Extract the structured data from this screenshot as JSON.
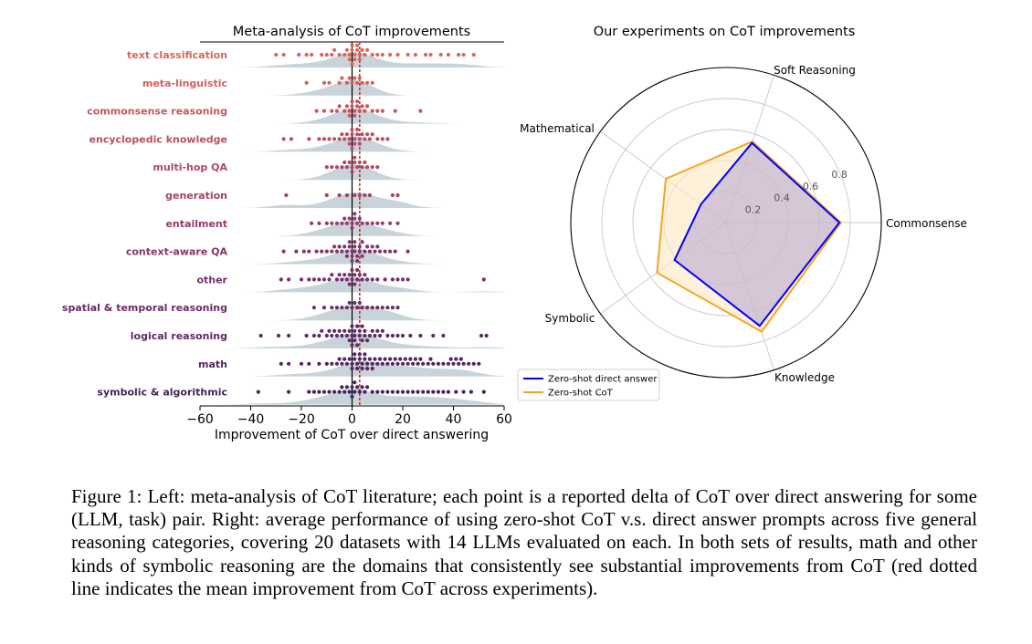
{
  "chart_data": [
    {
      "type": "scatter",
      "title": "Meta-analysis of CoT improvements",
      "xlabel": "Improvement of CoT over direct answering",
      "xlim": [
        -60,
        60
      ],
      "xticks": [
        "−60",
        "−40",
        "−20",
        "0",
        "20",
        "40",
        "60"
      ],
      "xtick_values": [
        -60,
        -40,
        -20,
        0,
        20,
        40,
        60
      ],
      "mean_line": 3,
      "mean_line_color": "#d62728",
      "zero_line_color": "#000000",
      "density_color": "#b5c5cc",
      "categories": [
        {
          "name": "text classification",
          "color": "#d9675a",
          "values": [
            -30,
            -27,
            -21,
            -18,
            -16,
            -12,
            -10,
            -8,
            -7,
            -5,
            -3,
            -2,
            -1,
            -1,
            0,
            0,
            0,
            1,
            1,
            2,
            2,
            3,
            3,
            4,
            5,
            6,
            8,
            10,
            12,
            15,
            18,
            22,
            25,
            29,
            31,
            35,
            38,
            42,
            44,
            48
          ]
        },
        {
          "name": "meta-linguistic",
          "color": "#d4605d",
          "values": [
            -18,
            -11,
            -9,
            -5,
            -4,
            -2,
            -1,
            0,
            1,
            2,
            3,
            4,
            6,
            8
          ]
        },
        {
          "name": "commonsense reasoning",
          "color": "#c9565f",
          "values": [
            -14,
            -11,
            -8,
            -6,
            -5,
            -3,
            -2,
            -1,
            -1,
            0,
            0,
            1,
            1,
            2,
            2,
            3,
            4,
            5,
            6,
            8,
            10,
            12,
            17,
            27
          ]
        },
        {
          "name": "encyclopedic knowledge",
          "color": "#bd4e62",
          "values": [
            -27,
            -24,
            -17,
            -13,
            -11,
            -9,
            -7,
            -5,
            -4,
            -3,
            -2,
            -1,
            -1,
            0,
            0,
            0,
            1,
            1,
            2,
            2,
            3,
            3,
            4,
            5,
            6,
            7,
            8,
            10,
            12,
            14
          ]
        },
        {
          "name": "multi-hop QA",
          "color": "#b04766",
          "values": [
            -10,
            -8,
            -6,
            -4,
            -3,
            -2,
            -1,
            0,
            0,
            1,
            1,
            2,
            3,
            4,
            5,
            6,
            8,
            10
          ]
        },
        {
          "name": "generation",
          "color": "#a34169",
          "values": [
            -26,
            -10,
            -5,
            -2,
            1,
            3,
            5,
            7,
            16,
            18
          ]
        },
        {
          "name": "entailment",
          "color": "#953b6b",
          "values": [
            -16,
            -13,
            -10,
            -8,
            -6,
            -4,
            -3,
            -2,
            -1,
            0,
            0,
            1,
            1,
            2,
            3,
            4,
            6,
            8,
            10,
            12,
            15,
            18
          ]
        },
        {
          "name": "context-aware QA",
          "color": "#86356c",
          "values": [
            -27,
            -22,
            -19,
            -17,
            -14,
            -12,
            -10,
            -8,
            -7,
            -6,
            -5,
            -4,
            -3,
            -2,
            -2,
            -1,
            -1,
            0,
            0,
            0,
            1,
            1,
            1,
            2,
            2,
            3,
            3,
            4,
            4,
            5,
            6,
            7,
            8,
            9,
            10,
            11,
            13,
            15,
            17,
            22
          ]
        },
        {
          "name": "other",
          "color": "#78306b",
          "values": [
            -28,
            -25,
            -20,
            -17,
            -15,
            -13,
            -11,
            -9,
            -8,
            -6,
            -5,
            -4,
            -3,
            -2,
            -1,
            -1,
            0,
            0,
            1,
            1,
            2,
            2,
            3,
            4,
            5,
            6,
            8,
            10,
            13,
            16,
            18,
            20,
            22,
            52
          ]
        },
        {
          "name": "spatial & temporal reasoning",
          "color": "#6b2c69",
          "values": [
            -15,
            -11,
            -8,
            -6,
            -4,
            -2,
            -1,
            0,
            1,
            2,
            3,
            4,
            6,
            8,
            10,
            12,
            14,
            16,
            18
          ]
        },
        {
          "name": "logical reasoning",
          "color": "#5f2966",
          "values": [
            -36,
            -29,
            -25,
            -18,
            -15,
            -13,
            -12,
            -10,
            -9,
            -8,
            -7,
            -6,
            -5,
            -4,
            -3,
            -2,
            -1,
            -1,
            0,
            0,
            0,
            1,
            1,
            1,
            2,
            2,
            3,
            3,
            4,
            4,
            5,
            5,
            6,
            7,
            8,
            9,
            10,
            11,
            12,
            14,
            16,
            18,
            20,
            23,
            27,
            32,
            36,
            51,
            53
          ]
        },
        {
          "name": "math",
          "color": "#532661",
          "values": [
            -28,
            -25,
            -20,
            -17,
            -13,
            -10,
            -8,
            -6,
            -5,
            -4,
            -3,
            -2,
            -1,
            0,
            0,
            1,
            1,
            2,
            2,
            3,
            3,
            4,
            4,
            5,
            5,
            6,
            6,
            7,
            8,
            8,
            9,
            10,
            11,
            12,
            13,
            14,
            15,
            16,
            17,
            18,
            19,
            20,
            21,
            22,
            23,
            24,
            25,
            26,
            27,
            28,
            30,
            31,
            32,
            34,
            36,
            38,
            39,
            40,
            41,
            42,
            43,
            44,
            46,
            48,
            50
          ]
        },
        {
          "name": "symbolic & algorithmic",
          "color": "#48235c",
          "values": [
            -37,
            -25,
            -17,
            -15,
            -13,
            -11,
            -9,
            -7,
            -5,
            -4,
            -3,
            -2,
            -1,
            0,
            0,
            1,
            1,
            2,
            3,
            4,
            5,
            6,
            8,
            10,
            12,
            14,
            16,
            18,
            20,
            22,
            24,
            26,
            28,
            30,
            32,
            34,
            36,
            38,
            41,
            44,
            47,
            52
          ]
        }
      ]
    },
    {
      "type": "radar",
      "title": "Our experiments on CoT improvements",
      "axes": [
        "Soft Reasoning",
        "Commonsense",
        "Knowledge",
        "Symbolic",
        "Mathematical"
      ],
      "rlim": [
        0,
        1.0
      ],
      "rticks": [
        0.2,
        0.4,
        0.6,
        0.8
      ],
      "rtick_labels": [
        "0.2",
        "0.4",
        "0.6",
        "0.8"
      ],
      "series": [
        {
          "name": "Zero-shot direct answer",
          "color": "#0000ff",
          "values": [
            0.54,
            0.73,
            0.7,
            0.41,
            0.2
          ]
        },
        {
          "name": "Zero-shot CoT",
          "color": "#f5a623",
          "values": [
            0.55,
            0.74,
            0.74,
            0.55,
            0.48
          ]
        }
      ],
      "legend_position": "bottom-left"
    }
  ],
  "caption": "Figure 1: Left: meta-analysis of CoT literature; each point is a reported delta of CoT over direct answering for some (LLM, task) pair. Right: average performance of using zero-shot CoT v.s. direct answer prompts across five general reasoning categories, covering 20 datasets with 14 LLMs evaluated on each. In both sets of results, math and other kinds of symbolic reasoning are the domains that consistently see substantial improvements from CoT (red dotted line indicates the mean improvement from CoT across experiments)."
}
